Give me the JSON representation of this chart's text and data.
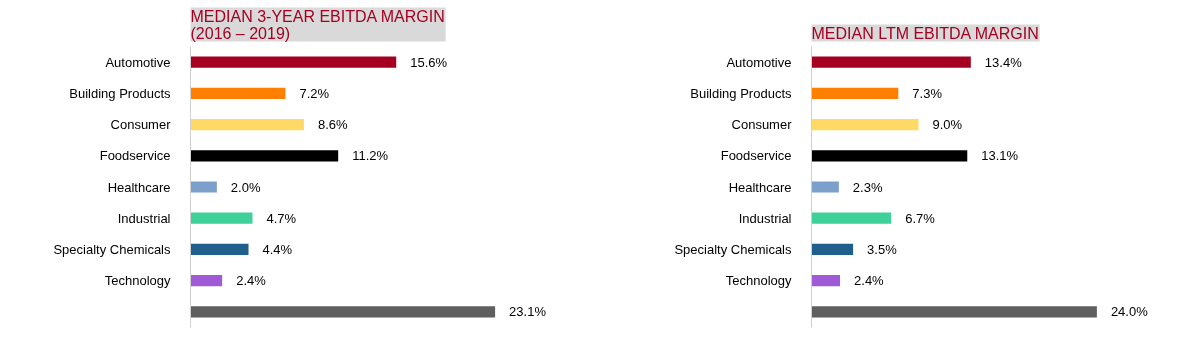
{
  "chart_data": [
    {
      "type": "bar",
      "orientation": "horizontal",
      "title": "MEDIAN 3-YEAR EBITDA MARGIN\n(2016 – 2019)",
      "categories": [
        "Automotive",
        "Building Products",
        "Consumer",
        "Foodservice",
        "Healthcare",
        "Industrial",
        "Specialty Chemicals",
        "Technology",
        null
      ],
      "values": [
        15.6,
        7.2,
        8.6,
        11.2,
        2.0,
        4.7,
        4.4,
        2.4,
        23.1
      ],
      "value_labels": [
        "15.6%",
        "7.2%",
        "8.6%",
        "11.2%",
        "2.0%",
        "4.7%",
        "4.4%",
        "2.4%",
        "23.1%"
      ],
      "colors": [
        "#a50021",
        "#ff8000",
        "#ffd966",
        "#000000",
        "#7ba0cc",
        "#3fd19a",
        "#1f5f8b",
        "#a05ad6",
        "#5f5f5f"
      ],
      "tick_labels": "y"
    },
    {
      "type": "bar",
      "orientation": "horizontal",
      "title": "MEDIAN LTM EBITDA MARGIN",
      "categories": [
        "Automotive",
        "Building Products",
        "Consumer",
        "Foodservice",
        "Healthcare",
        "Industrial",
        "Specialty Chemicals",
        "Technology",
        null
      ],
      "values": [
        13.4,
        7.3,
        9.0,
        13.1,
        2.3,
        6.7,
        3.5,
        2.4,
        24.0
      ],
      "value_labels": [
        "13.4%",
        "7.3%",
        "9.0%",
        "13.1%",
        "2.3%",
        "6.7%",
        "3.5%",
        "2.4%",
        "24.0%"
      ],
      "colors": [
        "#a50021",
        "#ff8000",
        "#ffd966",
        "#000000",
        "#7ba0cc",
        "#3fd19a",
        "#1f5f8b",
        "#a05ad6",
        "#5f5f5f"
      ],
      "tick_labels": "y"
    }
  ]
}
